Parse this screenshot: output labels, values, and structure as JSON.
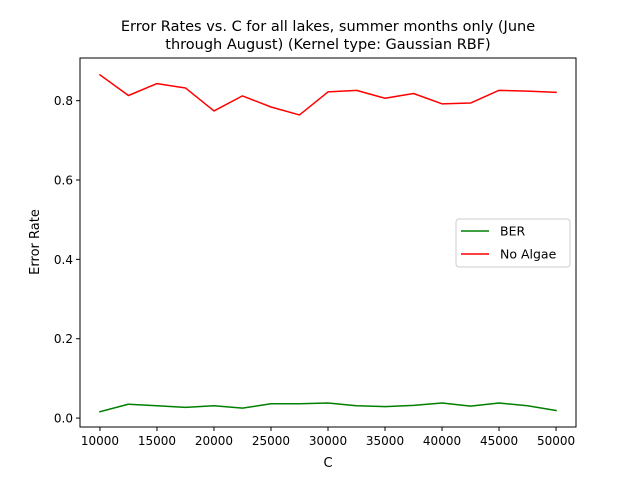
{
  "chart_data": {
    "type": "line",
    "title_lines": [
      "Error Rates vs. C for all lakes, summer months only (June",
      "through August) (Kernel type: Gaussian RBF)"
    ],
    "xlabel": "C",
    "ylabel": "Error Rate",
    "xlim": [
      8250,
      51750
    ],
    "ylim": [
      -0.0225,
      0.9075
    ],
    "xticks": [
      10000,
      15000,
      20000,
      25000,
      30000,
      35000,
      40000,
      45000,
      50000
    ],
    "xtick_labels": [
      "10000",
      "15000",
      "20000",
      "25000",
      "30000",
      "35000",
      "40000",
      "45000",
      "50000"
    ],
    "yticks": [
      0.0,
      0.2,
      0.4,
      0.6,
      0.8
    ],
    "ytick_labels": [
      "0.0",
      "0.2",
      "0.4",
      "0.6",
      "0.8"
    ],
    "grid": false,
    "legend_position": "center-right",
    "x": [
      10000,
      12500,
      15000,
      17500,
      20000,
      22500,
      25000,
      27500,
      30000,
      32500,
      35000,
      37500,
      40000,
      42500,
      45000,
      47500,
      50000
    ],
    "series": [
      {
        "name": "BER",
        "color": "#008000",
        "values": [
          0.016,
          0.035,
          0.031,
          0.027,
          0.031,
          0.025,
          0.036,
          0.036,
          0.038,
          0.031,
          0.029,
          0.032,
          0.038,
          0.03,
          0.038,
          0.031,
          0.019
        ]
      },
      {
        "name": "No Algae",
        "color": "#ff0000",
        "values": [
          0.865,
          0.813,
          0.843,
          0.832,
          0.774,
          0.812,
          0.784,
          0.764,
          0.822,
          0.826,
          0.806,
          0.818,
          0.792,
          0.794,
          0.826,
          0.824,
          0.821
        ]
      }
    ]
  }
}
